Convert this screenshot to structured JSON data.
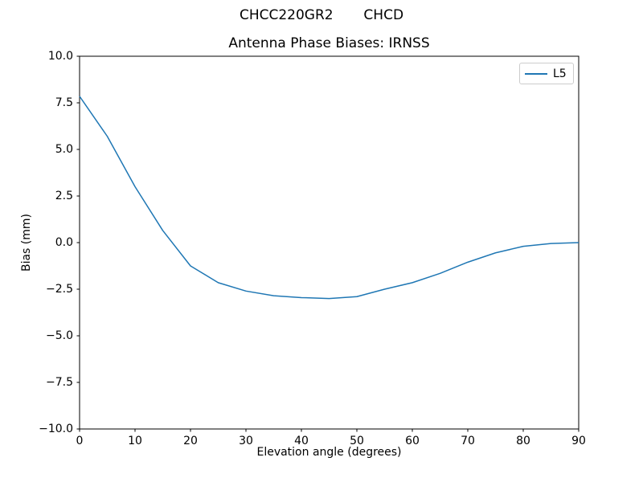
{
  "figure": {
    "suptitle": "CHCC220GR2       CHCD",
    "background": "#ffffff"
  },
  "chart_data": {
    "type": "line",
    "title": "Antenna Phase Biases: IRNSS",
    "xlabel": "Elevation angle (degrees)",
    "ylabel": "Bias (mm)",
    "xlim": [
      0,
      90
    ],
    "ylim": [
      -10,
      10
    ],
    "grid": false,
    "xticks": [
      {
        "v": 0,
        "label": "0"
      },
      {
        "v": 10,
        "label": "10"
      },
      {
        "v": 20,
        "label": "20"
      },
      {
        "v": 30,
        "label": "30"
      },
      {
        "v": 40,
        "label": "40"
      },
      {
        "v": 50,
        "label": "50"
      },
      {
        "v": 60,
        "label": "60"
      },
      {
        "v": 70,
        "label": "70"
      },
      {
        "v": 80,
        "label": "80"
      },
      {
        "v": 90,
        "label": "90"
      }
    ],
    "yticks": [
      {
        "v": 10,
        "label": "10.0"
      },
      {
        "v": 7.5,
        "label": "7.5"
      },
      {
        "v": 5,
        "label": "5.0"
      },
      {
        "v": 2.5,
        "label": "2.5"
      },
      {
        "v": 0,
        "label": "0.0"
      },
      {
        "v": -2.5,
        "label": "−2.5"
      },
      {
        "v": -5,
        "label": "−5.0"
      },
      {
        "v": -7.5,
        "label": "−7.5"
      },
      {
        "v": -10,
        "label": "−10.0"
      }
    ],
    "legend": {
      "position": "upper-right",
      "entries": [
        {
          "label": "L5",
          "color": "#1f77b4"
        }
      ]
    },
    "series": [
      {
        "name": "L5",
        "color": "#1f77b4",
        "x": [
          0,
          5,
          10,
          15,
          20,
          25,
          30,
          35,
          40,
          45,
          50,
          55,
          60,
          65,
          70,
          75,
          80,
          85,
          90
        ],
        "y": [
          7.85,
          5.7,
          3.0,
          0.65,
          -1.25,
          -2.15,
          -2.6,
          -2.85,
          -2.95,
          -3.0,
          -2.9,
          -2.5,
          -2.15,
          -1.65,
          -1.05,
          -0.55,
          -0.2,
          -0.05,
          0.0
        ]
      }
    ]
  },
  "colors": {
    "line": "#1f77b4",
    "spine": "#000000",
    "tick": "#000000",
    "legend_border": "#cccccc"
  }
}
